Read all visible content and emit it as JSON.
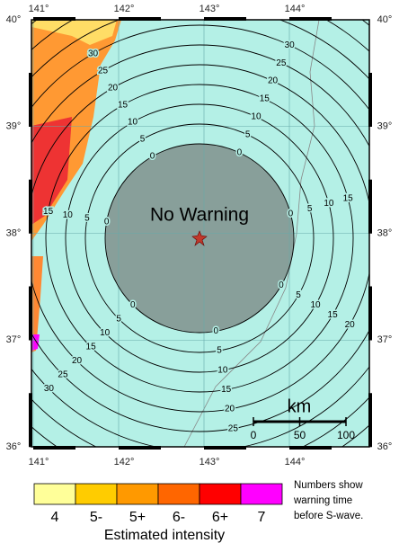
{
  "map": {
    "longitude_labels": [
      "141°",
      "142°",
      "143°",
      "144°"
    ],
    "latitude_labels": [
      "40°",
      "39°",
      "38°",
      "37°",
      "36°"
    ],
    "contour_labels": [
      0,
      5,
      10,
      15,
      20,
      25,
      30
    ],
    "center_label": "No Warning",
    "scale": {
      "unit": "km",
      "labels": [
        0,
        50,
        100
      ]
    }
  },
  "legend": {
    "items": [
      {
        "label": "4",
        "color": "#ffff99"
      },
      {
        "label": "5-",
        "color": "#ffcc00"
      },
      {
        "label": "5+",
        "color": "#ff9900"
      },
      {
        "label": "6-",
        "color": "#ff6600"
      },
      {
        "label": "6+",
        "color": "#ff0000"
      },
      {
        "label": "7",
        "color": "#ff00ff"
      }
    ],
    "title": "Estimated intensity",
    "note": [
      "Numbers show",
      "warning time",
      "before S-wave."
    ]
  }
}
